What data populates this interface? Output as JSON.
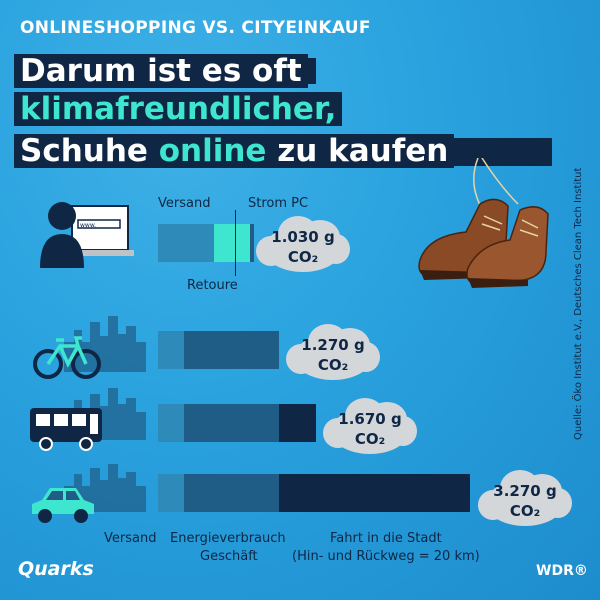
{
  "header": {
    "kicker": "ONLINESHOPPING VS. CITYEINKAUF",
    "line1": "Darum ist es oft",
    "line2": "klimafreundlicher,",
    "line3_part1": "Schuhe ",
    "line3_accent": "online",
    "line3_part2": " zu kaufen"
  },
  "source": "Quelle: Öko Institut e.V., Deutsches Clean Tech Institut",
  "online": {
    "label_versand": "Versand",
    "label_strom": "Strom PC",
    "label_retoure": "Retoure",
    "value_line1": "1.030 g",
    "value_line2": "CO₂"
  },
  "rows": [
    {
      "mode": "bike",
      "value_line1": "1.270 g",
      "value_line2": "CO₂"
    },
    {
      "mode": "bus",
      "value_line1": "1.670 g",
      "value_line2": "CO₂"
    },
    {
      "mode": "car",
      "value_line1": "3.270 g",
      "value_line2": "CO₂"
    }
  ],
  "legend": {
    "versand": "Versand",
    "energie_line1": "Energieverbrauch",
    "energie_line2": "Geschäft",
    "fahrt_line1": "Fahrt in die Stadt",
    "fahrt_line2": "(Hin- und Rückweg = 20 km)"
  },
  "brand": {
    "left": "Quarks",
    "right": "WDR®"
  },
  "laptop_text": "www.",
  "icons": [
    "computer-user-icon",
    "shoes-illustration",
    "bicycle-icon",
    "bus-icon",
    "car-icon",
    "city-skyline-icon"
  ],
  "colors": {
    "dark_navy": "#0f2745",
    "teal_light": "#3ee6cf",
    "bar_mid": "#1f5c86",
    "bar_light": "#2e8ab8",
    "cloud": "#d4d7da",
    "background": "#2aa3df"
  }
}
